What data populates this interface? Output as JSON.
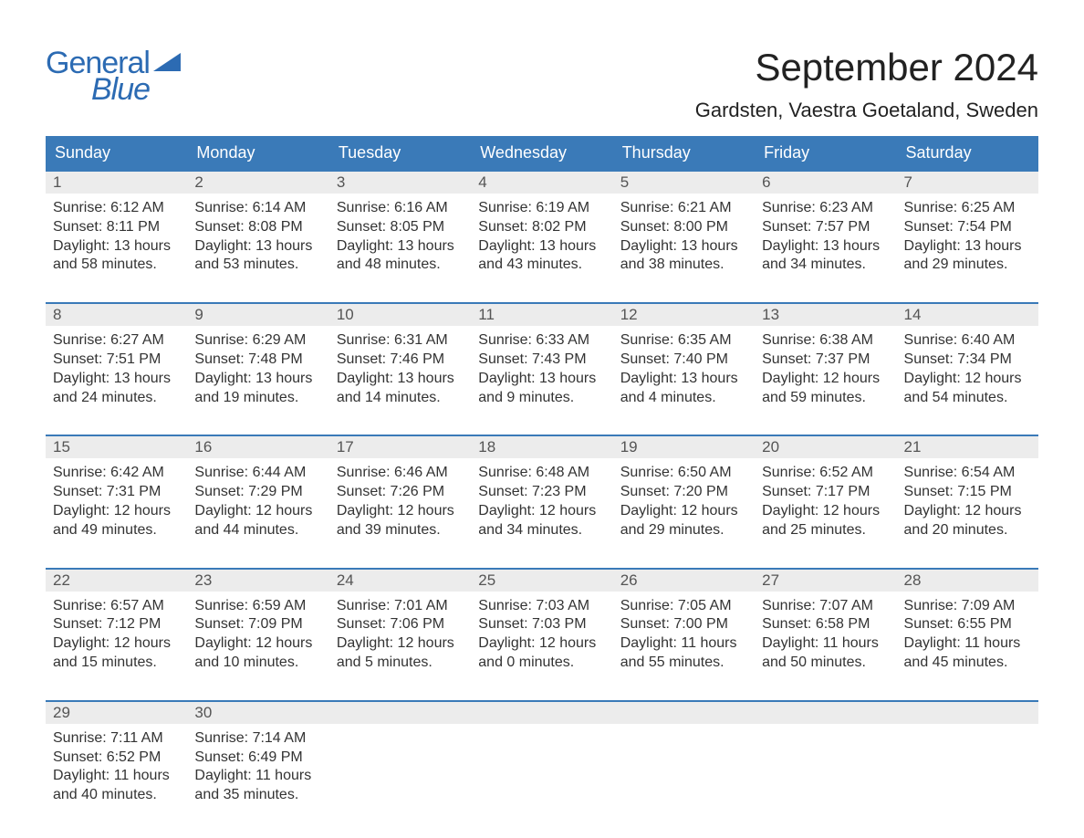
{
  "logo": {
    "word1": "General",
    "word2": "Blue"
  },
  "title": "September 2024",
  "location": "Gardsten, Vaestra Goetaland, Sweden",
  "colors": {
    "brand_blue": "#3a7ab8",
    "logo_blue": "#2c6bb3",
    "daynum_bg": "#ececec",
    "text": "#333333",
    "bg": "#ffffff"
  },
  "fonts": {
    "title_size_pt": 42,
    "location_size_pt": 22,
    "dow_size_pt": 18,
    "body_size_pt": 16
  },
  "daysOfWeek": [
    "Sunday",
    "Monday",
    "Tuesday",
    "Wednesday",
    "Thursday",
    "Friday",
    "Saturday"
  ],
  "labels": {
    "sunrise": "Sunrise:",
    "sunset": "Sunset:",
    "daylight": "Daylight:"
  },
  "weeks": [
    [
      {
        "num": "1",
        "sunrise": "6:12 AM",
        "sunset": "8:11 PM",
        "daylight": "13 hours and 58 minutes."
      },
      {
        "num": "2",
        "sunrise": "6:14 AM",
        "sunset": "8:08 PM",
        "daylight": "13 hours and 53 minutes."
      },
      {
        "num": "3",
        "sunrise": "6:16 AM",
        "sunset": "8:05 PM",
        "daylight": "13 hours and 48 minutes."
      },
      {
        "num": "4",
        "sunrise": "6:19 AM",
        "sunset": "8:02 PM",
        "daylight": "13 hours and 43 minutes."
      },
      {
        "num": "5",
        "sunrise": "6:21 AM",
        "sunset": "8:00 PM",
        "daylight": "13 hours and 38 minutes."
      },
      {
        "num": "6",
        "sunrise": "6:23 AM",
        "sunset": "7:57 PM",
        "daylight": "13 hours and 34 minutes."
      },
      {
        "num": "7",
        "sunrise": "6:25 AM",
        "sunset": "7:54 PM",
        "daylight": "13 hours and 29 minutes."
      }
    ],
    [
      {
        "num": "8",
        "sunrise": "6:27 AM",
        "sunset": "7:51 PM",
        "daylight": "13 hours and 24 minutes."
      },
      {
        "num": "9",
        "sunrise": "6:29 AM",
        "sunset": "7:48 PM",
        "daylight": "13 hours and 19 minutes."
      },
      {
        "num": "10",
        "sunrise": "6:31 AM",
        "sunset": "7:46 PM",
        "daylight": "13 hours and 14 minutes."
      },
      {
        "num": "11",
        "sunrise": "6:33 AM",
        "sunset": "7:43 PM",
        "daylight": "13 hours and 9 minutes."
      },
      {
        "num": "12",
        "sunrise": "6:35 AM",
        "sunset": "7:40 PM",
        "daylight": "13 hours and 4 minutes."
      },
      {
        "num": "13",
        "sunrise": "6:38 AM",
        "sunset": "7:37 PM",
        "daylight": "12 hours and 59 minutes."
      },
      {
        "num": "14",
        "sunrise": "6:40 AM",
        "sunset": "7:34 PM",
        "daylight": "12 hours and 54 minutes."
      }
    ],
    [
      {
        "num": "15",
        "sunrise": "6:42 AM",
        "sunset": "7:31 PM",
        "daylight": "12 hours and 49 minutes."
      },
      {
        "num": "16",
        "sunrise": "6:44 AM",
        "sunset": "7:29 PM",
        "daylight": "12 hours and 44 minutes."
      },
      {
        "num": "17",
        "sunrise": "6:46 AM",
        "sunset": "7:26 PM",
        "daylight": "12 hours and 39 minutes."
      },
      {
        "num": "18",
        "sunrise": "6:48 AM",
        "sunset": "7:23 PM",
        "daylight": "12 hours and 34 minutes."
      },
      {
        "num": "19",
        "sunrise": "6:50 AM",
        "sunset": "7:20 PM",
        "daylight": "12 hours and 29 minutes."
      },
      {
        "num": "20",
        "sunrise": "6:52 AM",
        "sunset": "7:17 PM",
        "daylight": "12 hours and 25 minutes."
      },
      {
        "num": "21",
        "sunrise": "6:54 AM",
        "sunset": "7:15 PM",
        "daylight": "12 hours and 20 minutes."
      }
    ],
    [
      {
        "num": "22",
        "sunrise": "6:57 AM",
        "sunset": "7:12 PM",
        "daylight": "12 hours and 15 minutes."
      },
      {
        "num": "23",
        "sunrise": "6:59 AM",
        "sunset": "7:09 PM",
        "daylight": "12 hours and 10 minutes."
      },
      {
        "num": "24",
        "sunrise": "7:01 AM",
        "sunset": "7:06 PM",
        "daylight": "12 hours and 5 minutes."
      },
      {
        "num": "25",
        "sunrise": "7:03 AM",
        "sunset": "7:03 PM",
        "daylight": "12 hours and 0 minutes."
      },
      {
        "num": "26",
        "sunrise": "7:05 AM",
        "sunset": "7:00 PM",
        "daylight": "11 hours and 55 minutes."
      },
      {
        "num": "27",
        "sunrise": "7:07 AM",
        "sunset": "6:58 PM",
        "daylight": "11 hours and 50 minutes."
      },
      {
        "num": "28",
        "sunrise": "7:09 AM",
        "sunset": "6:55 PM",
        "daylight": "11 hours and 45 minutes."
      }
    ],
    [
      {
        "num": "29",
        "sunrise": "7:11 AM",
        "sunset": "6:52 PM",
        "daylight": "11 hours and 40 minutes."
      },
      {
        "num": "30",
        "sunrise": "7:14 AM",
        "sunset": "6:49 PM",
        "daylight": "11 hours and 35 minutes."
      },
      null,
      null,
      null,
      null,
      null
    ]
  ]
}
